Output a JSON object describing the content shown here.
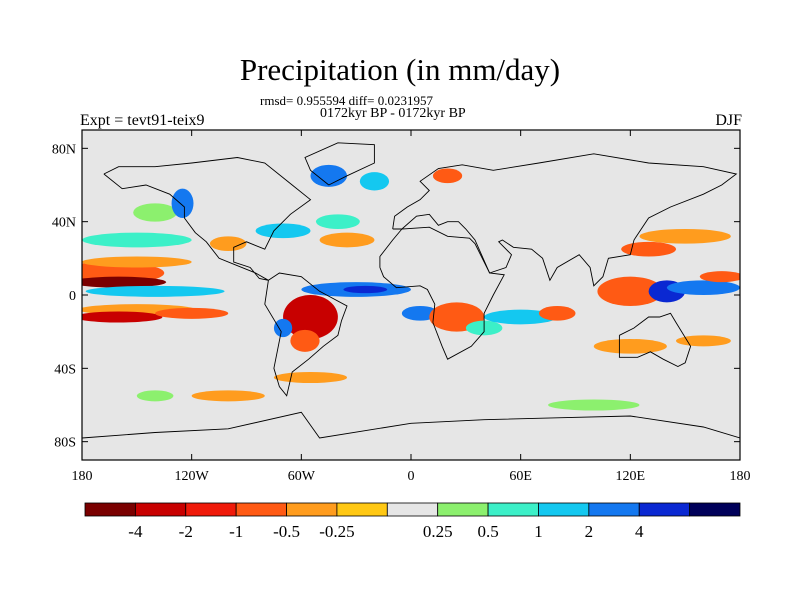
{
  "chart_data": {
    "type": "heatmap",
    "title": "Precipitation (in mm/day)",
    "stats_line": "rmsd= 0.955594 diff= 0.0231957",
    "period_line": "0172kyr BP - 0172kyr BP",
    "experiment_label": "Expt = tevt91-teix9",
    "season_label": "DJF",
    "x_axis": {
      "range": [
        -180,
        180
      ],
      "ticks": [
        {
          "value": -180,
          "label": "180"
        },
        {
          "value": -120,
          "label": "120W"
        },
        {
          "value": -60,
          "label": "60W"
        },
        {
          "value": 0,
          "label": "0"
        },
        {
          "value": 60,
          "label": "60E"
        },
        {
          "value": 120,
          "label": "120E"
        },
        {
          "value": 180,
          "label": "180"
        }
      ]
    },
    "y_axis": {
      "range": [
        -90,
        90
      ],
      "ticks": [
        {
          "value": 80,
          "label": "80N"
        },
        {
          "value": 40,
          "label": "40N"
        },
        {
          "value": 0,
          "label": "0"
        },
        {
          "value": -40,
          "label": "40S"
        },
        {
          "value": -80,
          "label": "80S"
        }
      ]
    },
    "colorbar": {
      "colors": [
        "#7a0000",
        "#c80000",
        "#f01a0a",
        "#ff5a14",
        "#ff9c1e",
        "#ffc814",
        "#e6e6e6",
        "#8cf06e",
        "#3cf0c8",
        "#14c8f0",
        "#1478f0",
        "#0a28d2",
        "#00005a"
      ],
      "labels": [
        "-4",
        "-2",
        "-1",
        "-0.5",
        "-0.25",
        "0.25",
        "0.5",
        "1",
        "2",
        "4"
      ]
    },
    "regions": [
      {
        "lon": -165,
        "lat": 12,
        "rx": 30,
        "ry": 6,
        "color": "#ff5a14"
      },
      {
        "lon": -160,
        "lat": 7,
        "rx": 26,
        "ry": 3,
        "color": "#7a0000"
      },
      {
        "lon": -150,
        "lat": 18,
        "rx": 30,
        "ry": 3,
        "color": "#ff9c1e"
      },
      {
        "lon": -140,
        "lat": 2,
        "rx": 38,
        "ry": 3,
        "color": "#14c8f0"
      },
      {
        "lon": -150,
        "lat": -8,
        "rx": 32,
        "ry": 3,
        "color": "#ff9c1e"
      },
      {
        "lon": -160,
        "lat": -12,
        "rx": 24,
        "ry": 3,
        "color": "#c80000"
      },
      {
        "lon": -120,
        "lat": -10,
        "rx": 20,
        "ry": 3,
        "color": "#ff5a14"
      },
      {
        "lon": -150,
        "lat": 30,
        "rx": 30,
        "ry": 4,
        "color": "#3cf0c8"
      },
      {
        "lon": -140,
        "lat": 45,
        "rx": 12,
        "ry": 5,
        "color": "#8cf06e"
      },
      {
        "lon": -125,
        "lat": 50,
        "rx": 6,
        "ry": 8,
        "color": "#1478f0"
      },
      {
        "lon": -100,
        "lat": 28,
        "rx": 10,
        "ry": 4,
        "color": "#ff9c1e"
      },
      {
        "lon": -70,
        "lat": 35,
        "rx": 15,
        "ry": 4,
        "color": "#14c8f0"
      },
      {
        "lon": -40,
        "lat": 40,
        "rx": 12,
        "ry": 4,
        "color": "#3cf0c8"
      },
      {
        "lon": -35,
        "lat": 30,
        "rx": 15,
        "ry": 4,
        "color": "#ff9c1e"
      },
      {
        "lon": -45,
        "lat": 65,
        "rx": 10,
        "ry": 6,
        "color": "#1478f0"
      },
      {
        "lon": -20,
        "lat": 62,
        "rx": 8,
        "ry": 5,
        "color": "#14c8f0"
      },
      {
        "lon": 20,
        "lat": 65,
        "rx": 8,
        "ry": 4,
        "color": "#ff5a14"
      },
      {
        "lon": -30,
        "lat": 3,
        "rx": 30,
        "ry": 4,
        "color": "#1478f0"
      },
      {
        "lon": -25,
        "lat": 3,
        "rx": 12,
        "ry": 2,
        "color": "#0a28d2"
      },
      {
        "lon": -55,
        "lat": -12,
        "rx": 15,
        "ry": 12,
        "color": "#c80000"
      },
      {
        "lon": -58,
        "lat": -25,
        "rx": 8,
        "ry": 6,
        "color": "#ff5a14"
      },
      {
        "lon": -70,
        "lat": -18,
        "rx": 5,
        "ry": 5,
        "color": "#1478f0"
      },
      {
        "lon": -55,
        "lat": -45,
        "rx": 20,
        "ry": 3,
        "color": "#ff9c1e"
      },
      {
        "lon": 5,
        "lat": -10,
        "rx": 10,
        "ry": 4,
        "color": "#1478f0"
      },
      {
        "lon": 25,
        "lat": -12,
        "rx": 15,
        "ry": 8,
        "color": "#ff5a14"
      },
      {
        "lon": 40,
        "lat": -18,
        "rx": 10,
        "ry": 4,
        "color": "#3cf0c8"
      },
      {
        "lon": 60,
        "lat": -12,
        "rx": 20,
        "ry": 4,
        "color": "#14c8f0"
      },
      {
        "lon": 80,
        "lat": -10,
        "rx": 10,
        "ry": 4,
        "color": "#ff5a14"
      },
      {
        "lon": 120,
        "lat": 2,
        "rx": 18,
        "ry": 8,
        "color": "#ff5a14"
      },
      {
        "lon": 140,
        "lat": 2,
        "rx": 10,
        "ry": 6,
        "color": "#0a28d2"
      },
      {
        "lon": 160,
        "lat": 4,
        "rx": 20,
        "ry": 4,
        "color": "#1478f0"
      },
      {
        "lon": 130,
        "lat": 25,
        "rx": 15,
        "ry": 4,
        "color": "#ff5a14"
      },
      {
        "lon": 150,
        "lat": 32,
        "rx": 25,
        "ry": 4,
        "color": "#ff9c1e"
      },
      {
        "lon": 170,
        "lat": 10,
        "rx": 12,
        "ry": 3,
        "color": "#ff5a14"
      },
      {
        "lon": 120,
        "lat": -28,
        "rx": 20,
        "ry": 4,
        "color": "#ff9c1e"
      },
      {
        "lon": 160,
        "lat": -25,
        "rx": 15,
        "ry": 3,
        "color": "#ff9c1e"
      },
      {
        "lon": -100,
        "lat": -55,
        "rx": 20,
        "ry": 3,
        "color": "#ff9c1e"
      },
      {
        "lon": 100,
        "lat": -60,
        "rx": 25,
        "ry": 3,
        "color": "#8cf06e"
      },
      {
        "lon": -140,
        "lat": -55,
        "rx": 10,
        "ry": 3,
        "color": "#8cf06e"
      }
    ]
  }
}
